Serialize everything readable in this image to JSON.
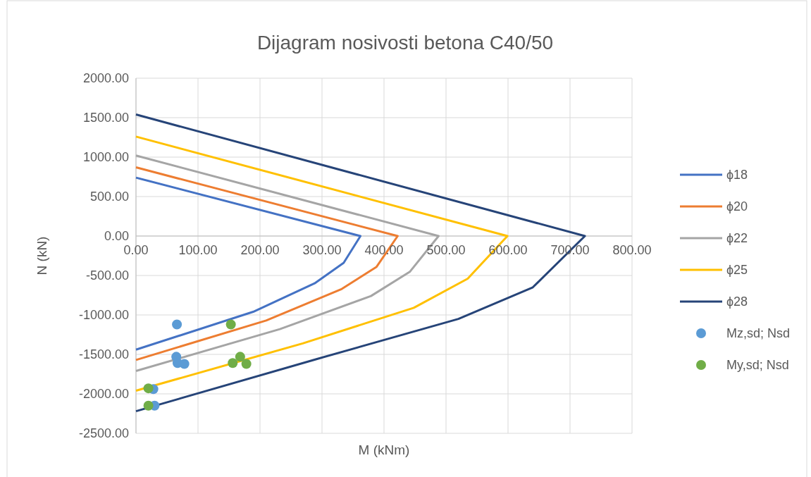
{
  "chart_data": {
    "type": "line",
    "title": "Dijagram nosivosti betona C40/50",
    "xlabel": "M (kNm)",
    "ylabel": "N (kN)",
    "xlim": [
      0,
      800
    ],
    "ylim": [
      -2500,
      2000
    ],
    "xticks": [
      {
        "value": 0,
        "label": "0.00"
      },
      {
        "value": 100,
        "label": "100.00"
      },
      {
        "value": 200,
        "label": "200.00"
      },
      {
        "value": 300,
        "label": "300.00"
      },
      {
        "value": 400,
        "label": "400.00"
      },
      {
        "value": 500,
        "label": "500.00"
      },
      {
        "value": 600,
        "label": "600.00"
      },
      {
        "value": 700,
        "label": "700.00"
      },
      {
        "value": 800,
        "label": "800.00"
      }
    ],
    "yticks": [
      {
        "value": -2500,
        "label": "-2500.00"
      },
      {
        "value": -2000,
        "label": "-2000.00"
      },
      {
        "value": -1500,
        "label": "-1500.00"
      },
      {
        "value": -1000,
        "label": "-1000.00"
      },
      {
        "value": -500,
        "label": "-500.00"
      },
      {
        "value": 0,
        "label": "0.00"
      },
      {
        "value": 500,
        "label": "500.00"
      },
      {
        "value": 1000,
        "label": "1000.00"
      },
      {
        "value": 1500,
        "label": "1500.00"
      },
      {
        "value": 2000,
        "label": "2000.00"
      }
    ],
    "grid": true,
    "legend": "right",
    "marker": "none",
    "line_style": "solid",
    "series": [
      {
        "name": "ϕ18",
        "color": "#4472c4",
        "x": [
          0,
          362,
          335,
          288,
          189,
          0
        ],
        "values": [
          740,
          0,
          -340,
          -600,
          -960,
          -1440
        ]
      },
      {
        "name": "ϕ20",
        "color": "#ed7d31",
        "x": [
          0,
          422,
          388,
          332,
          210,
          0
        ],
        "values": [
          870,
          0,
          -390,
          -670,
          -1070,
          -1570
        ]
      },
      {
        "name": "ϕ22",
        "color": "#a5a5a5",
        "x": [
          0,
          488,
          442,
          379,
          232,
          0
        ],
        "values": [
          1020,
          0,
          -450,
          -760,
          -1180,
          -1710
        ]
      },
      {
        "name": "ϕ25",
        "color": "#ffc000",
        "x": [
          0,
          599,
          535,
          448,
          269,
          0
        ],
        "values": [
          1260,
          0,
          -540,
          -910,
          -1360,
          -1960
        ]
      },
      {
        "name": "ϕ28",
        "color": "#264478",
        "x": [
          0,
          724,
          640,
          520,
          291,
          0
        ],
        "values": [
          1540,
          0,
          -650,
          -1050,
          -1560,
          -2220
        ]
      },
      {
        "name": "Mz,sd; Nsd",
        "type": "scatter",
        "marker": "circle",
        "color": "#5b9bd5",
        "x": [
          66,
          65,
          67,
          78,
          28,
          30
        ],
        "values": [
          -1120,
          -1530,
          -1610,
          -1620,
          -1940,
          -2150
        ]
      },
      {
        "name": "My,sd; Nsd",
        "type": "scatter",
        "marker": "circle",
        "color": "#70ad47",
        "x": [
          153,
          168,
          156,
          178,
          20,
          20
        ],
        "values": [
          -1120,
          -1530,
          -1610,
          -1620,
          -1930,
          -2150
        ]
      }
    ]
  }
}
